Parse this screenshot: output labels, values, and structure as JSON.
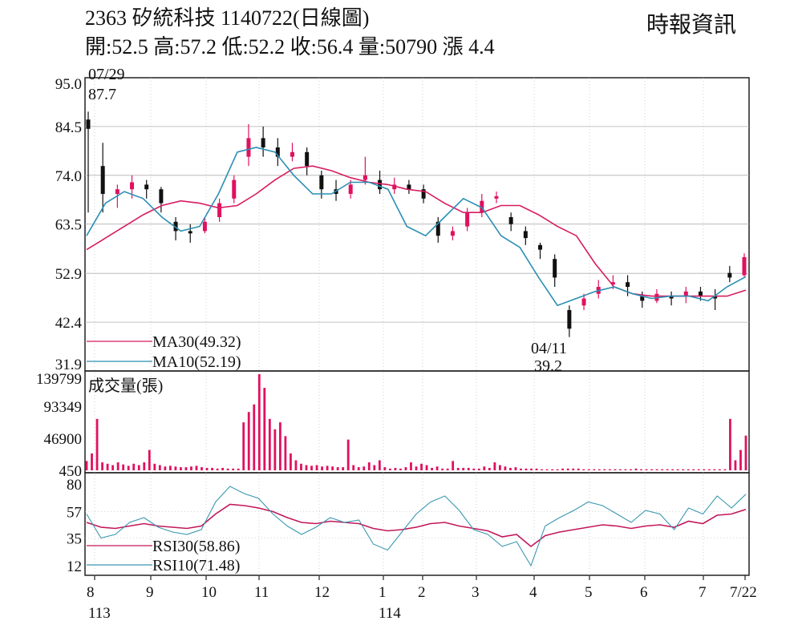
{
  "header": {
    "title": "2363  矽統科技 1140722(日線圖)",
    "ohlc": "開:52.5 高:57.2 低:52.2 收:56.4 量:50790 漲 4.4",
    "source": "時報資訊"
  },
  "colors": {
    "up": "#e0115f",
    "down": "#111111",
    "ma30": "#d81b60",
    "ma10": "#2a8fb3",
    "volume": "#e0115f",
    "rsi30": "#c2185b",
    "rsi10": "#3a97b0",
    "grid": "#b0b0b0"
  },
  "chart_data": [
    {
      "type": "candlestick",
      "panel": "price",
      "y_ticks": [
        "95.0",
        "84.5",
        "74.0",
        "63.5",
        "52.9",
        "42.4",
        "31.9"
      ],
      "ylim": [
        31.9,
        95.0
      ],
      "x_tick_labels": [
        "8",
        "9",
        "10",
        "11",
        "12",
        "1",
        "2",
        "3",
        "4",
        "5",
        "6",
        "7",
        "7/22"
      ],
      "year_labels": [
        "113",
        "114"
      ],
      "annotations": [
        {
          "date": "07/29",
          "value": "87.7"
        },
        {
          "date": "04/11",
          "value": "39.2"
        }
      ],
      "series": [
        {
          "name": "MA30(49.32)",
          "values": [
            58.0,
            60.5,
            63.0,
            65.5,
            67.5,
            68.5,
            68.0,
            67.0,
            67.5,
            70.0,
            73.0,
            75.5,
            76.0,
            75.0,
            73.5,
            72.5,
            72.0,
            71.0,
            70.5,
            68.0,
            66.0,
            66.0,
            67.5,
            67.5,
            65.5,
            63.0,
            61.0,
            55.0,
            50.0,
            48.5,
            48.0,
            48.0,
            48.0,
            48.0,
            48.0,
            49.3
          ]
        },
        {
          "name": "MA10(52.19)",
          "values": [
            61.0,
            68.0,
            70.5,
            69.0,
            65.0,
            62.0,
            63.0,
            70.0,
            79.0,
            80.0,
            79.0,
            74.0,
            70.0,
            70.0,
            72.5,
            72.5,
            71.0,
            63.0,
            61.0,
            65.0,
            69.0,
            67.0,
            61.0,
            58.5,
            52.0,
            46.0,
            47.5,
            49.0,
            50.0,
            48.5,
            47.5,
            48.0,
            48.0,
            47.0,
            50.0,
            52.2
          ]
        }
      ],
      "candles": [
        [
          86.0,
          84.0,
          87.7,
          66.0
        ],
        [
          76.0,
          70.0,
          81.0,
          66.0
        ],
        [
          70.0,
          71.0,
          72.0,
          67.0
        ],
        [
          71.0,
          72.5,
          74.0,
          69.0
        ],
        [
          72.0,
          71.0,
          73.0,
          69.0
        ],
        [
          71.0,
          68.0,
          71.5,
          66.0
        ],
        [
          64.0,
          62.0,
          65.0,
          60.0
        ],
        [
          62.0,
          61.5,
          63.5,
          59.5
        ],
        [
          62.0,
          64.0,
          65.0,
          61.5
        ],
        [
          65.0,
          68.0,
          69.0,
          64.0
        ],
        [
          69.0,
          73.0,
          74.0,
          68.0
        ],
        [
          78.0,
          82.0,
          85.0,
          76.0
        ],
        [
          82.0,
          80.0,
          84.5,
          78.0
        ],
        [
          80.0,
          78.0,
          82.0,
          76.0
        ],
        [
          78.0,
          79.0,
          81.0,
          77.0
        ],
        [
          79.0,
          76.0,
          80.0,
          74.0
        ],
        [
          74.0,
          71.0,
          75.0,
          69.0
        ],
        [
          71.0,
          70.0,
          73.0,
          68.5
        ],
        [
          70.0,
          72.0,
          73.0,
          69.0
        ],
        [
          73.0,
          74.0,
          78.0,
          72.0
        ],
        [
          73.0,
          71.0,
          75.0,
          70.0
        ],
        [
          71.0,
          72.0,
          73.5,
          70.0
        ],
        [
          72.0,
          71.0,
          73.0,
          70.0
        ],
        [
          71.0,
          69.0,
          72.0,
          68.0
        ],
        [
          64.0,
          61.0,
          65.0,
          59.5
        ],
        [
          61.0,
          62.0,
          63.0,
          60.0
        ],
        [
          63.0,
          66.0,
          67.0,
          62.0
        ],
        [
          66.0,
          68.5,
          70.0,
          65.0
        ],
        [
          69.0,
          69.5,
          70.5,
          68.0
        ],
        [
          65.0,
          63.5,
          66.0,
          62.0
        ],
        [
          62.0,
          60.5,
          63.0,
          59.0
        ],
        [
          59.0,
          58.0,
          59.5,
          56.0
        ],
        [
          56.0,
          52.0,
          57.0,
          50.0
        ],
        [
          45.0,
          41.0,
          46.0,
          39.2
        ],
        [
          46.0,
          47.5,
          48.5,
          45.0
        ],
        [
          48.5,
          50.0,
          51.5,
          47.5
        ],
        [
          50.5,
          51.0,
          52.5,
          49.5
        ],
        [
          51.0,
          50.0,
          52.5,
          48.0
        ],
        [
          48.0,
          47.0,
          49.0,
          45.5
        ],
        [
          47.0,
          48.5,
          49.5,
          46.5
        ],
        [
          48.0,
          47.5,
          49.0,
          46.0
        ],
        [
          48.0,
          49.0,
          50.0,
          46.5
        ],
        [
          49.0,
          48.0,
          50.0,
          47.0
        ],
        [
          48.0,
          47.5,
          49.5,
          45.0
        ],
        [
          53.0,
          52.0,
          54.5,
          51.0
        ],
        [
          52.5,
          56.4,
          57.2,
          52.2
        ]
      ]
    },
    {
      "type": "bar",
      "panel": "volume",
      "title": "成交量(張)",
      "y_ticks": [
        "139799",
        "93349",
        "46900",
        "450"
      ],
      "ylim": [
        450,
        139799
      ],
      "values": [
        14000,
        25000,
        75000,
        12000,
        10000,
        8000,
        12000,
        9000,
        7000,
        10000,
        8000,
        12000,
        30000,
        10000,
        8000,
        6000,
        7000,
        6000,
        5000,
        5000,
        6000,
        7000,
        5000,
        4000,
        4000,
        3000,
        4000,
        3000,
        3000,
        3000,
        70000,
        85000,
        96000,
        139799,
        120000,
        75000,
        60000,
        70000,
        50000,
        25000,
        15000,
        10000,
        8000,
        7000,
        8000,
        6000,
        7000,
        6000,
        5000,
        5000,
        45000,
        8000,
        5000,
        6000,
        12000,
        8000,
        15000,
        5000,
        3000,
        4000,
        3000,
        5000,
        12000,
        6000,
        10000,
        8000,
        4000,
        6000,
        3000,
        3000,
        14000,
        4000,
        4000,
        4000,
        3000,
        3000,
        6000,
        4000,
        12000,
        8000,
        6000,
        4000,
        5000,
        3000,
        3000,
        3000,
        3000,
        2000,
        2000,
        2000,
        2000,
        3000,
        3000,
        3000,
        3000,
        2000,
        2000,
        2000,
        2000,
        2000,
        2000,
        2000,
        2000,
        2000,
        2000,
        3000,
        2000,
        2000,
        2000,
        2000,
        2000,
        2000,
        2000,
        2000,
        2000,
        2000,
        2000,
        2000,
        2000,
        2000,
        2000,
        2000,
        2000,
        75000,
        15000,
        30000,
        50790
      ]
    },
    {
      "type": "line",
      "panel": "rsi",
      "y_ticks": [
        "80",
        "57",
        "35",
        "12"
      ],
      "ylim": [
        12,
        80
      ],
      "series": [
        {
          "name": "RSI30(58.86)",
          "values": [
            48,
            44,
            43,
            45,
            47,
            45,
            44,
            43,
            45,
            55,
            63,
            62,
            60,
            57,
            52,
            48,
            47,
            49,
            48,
            47,
            43,
            41,
            42,
            44,
            47,
            48,
            45,
            43,
            41,
            36,
            38,
            28,
            37,
            40,
            42,
            44,
            46,
            45,
            43,
            45,
            46,
            44,
            49,
            47,
            54,
            55,
            58.86
          ]
        },
        {
          "name": "RSI10(71.48)",
          "values": [
            55,
            35,
            38,
            48,
            52,
            44,
            40,
            38,
            42,
            65,
            78,
            72,
            68,
            55,
            45,
            38,
            44,
            52,
            48,
            50,
            30,
            25,
            40,
            55,
            65,
            70,
            58,
            42,
            38,
            28,
            32,
            12,
            45,
            52,
            58,
            65,
            62,
            55,
            48,
            58,
            55,
            42,
            60,
            55,
            70,
            60,
            71.48
          ]
        }
      ]
    }
  ]
}
